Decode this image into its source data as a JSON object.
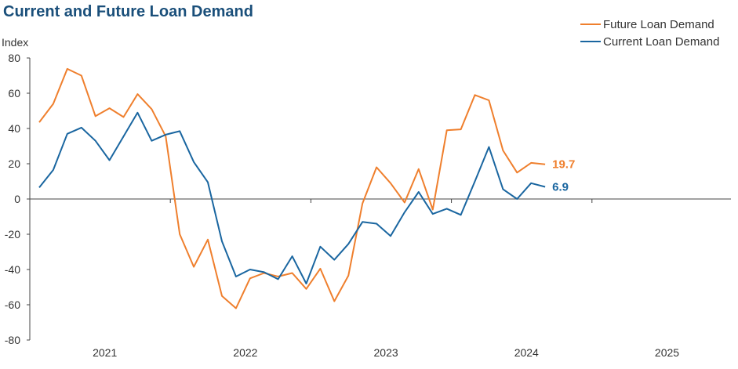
{
  "chart_data": {
    "type": "line",
    "title": "Current and Future Loan Demand",
    "ylabel": "Index",
    "xlabel": "",
    "ylim": [
      -80,
      80
    ],
    "yticks": [
      80,
      60,
      40,
      20,
      0,
      -20,
      -40,
      -60,
      -80
    ],
    "xtick_labels": [
      "2021",
      "2022",
      "2023",
      "2024",
      "2025"
    ],
    "grid": false,
    "legend_position": "top-right",
    "x_index": [
      0,
      1,
      2,
      3,
      4,
      5,
      6,
      7,
      8,
      9,
      10,
      11,
      12,
      13,
      14,
      15,
      16,
      17,
      18,
      19,
      20,
      21,
      22,
      23,
      24,
      25,
      26,
      27,
      28,
      29,
      30,
      31,
      32,
      33,
      34,
      35,
      36,
      37,
      38,
      39,
      40,
      41,
      42,
      43,
      44,
      45,
      46,
      47
    ],
    "series": [
      {
        "name": "Future Loan Demand",
        "color": "#ef7f2d",
        "end_label": "19.7",
        "values": [
          43.5,
          54.0,
          73.8,
          70.0,
          47.0,
          51.5,
          46.5,
          59.5,
          51.0,
          35.5,
          -20.0,
          -38.5,
          -23.0,
          -55.0,
          -62.0,
          -45.0,
          -42.0,
          -44.0,
          -42.0,
          -51.0,
          -39.5,
          -58.0,
          -43.5,
          -2.5,
          18.0,
          9.0,
          -2.0,
          17.0,
          -6.0,
          39.0,
          39.5,
          59.0,
          56.0,
          27.5,
          15.0,
          20.5,
          19.7
        ]
      },
      {
        "name": "Current Loan Demand",
        "color": "#1a66a0",
        "end_label": "6.9",
        "values": [
          6.5,
          16.5,
          37.0,
          40.5,
          33.0,
          22.0,
          35.5,
          49.0,
          33.0,
          36.5,
          38.5,
          21.0,
          9.5,
          -24.0,
          -44.0,
          -40.0,
          -41.5,
          -45.5,
          -32.5,
          -48.0,
          -27.0,
          -34.5,
          -25.5,
          -13.0,
          -14.0,
          -21.0,
          -7.5,
          4.0,
          -8.5,
          -5.5,
          -9.0,
          10.0,
          29.5,
          5.5,
          0.0,
          9.0,
          6.9
        ]
      }
    ]
  }
}
